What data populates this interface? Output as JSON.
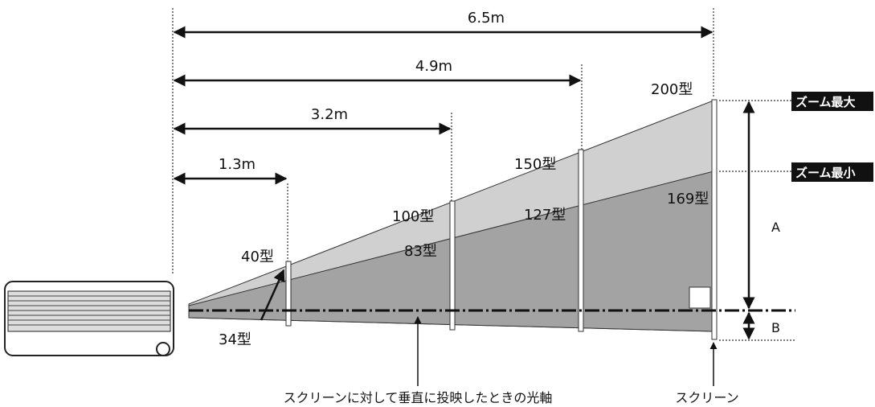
{
  "distances": [
    "1.3m",
    "3.2m",
    "4.9m",
    "6.5m"
  ],
  "zoom_max_sizes": [
    "40型",
    "100型",
    "150型",
    "200型"
  ],
  "zoom_min_sizes": [
    "34型",
    "83型",
    "127型",
    "169型"
  ],
  "zoom_labels": {
    "max": "ズーム最大",
    "min": "ズーム最小"
  },
  "dimension_labels": {
    "a": "A",
    "b": "B"
  },
  "captions": {
    "optical_axis": "スクリーンに対して垂直に投映したときの光軸",
    "screen": "スクリーン"
  }
}
